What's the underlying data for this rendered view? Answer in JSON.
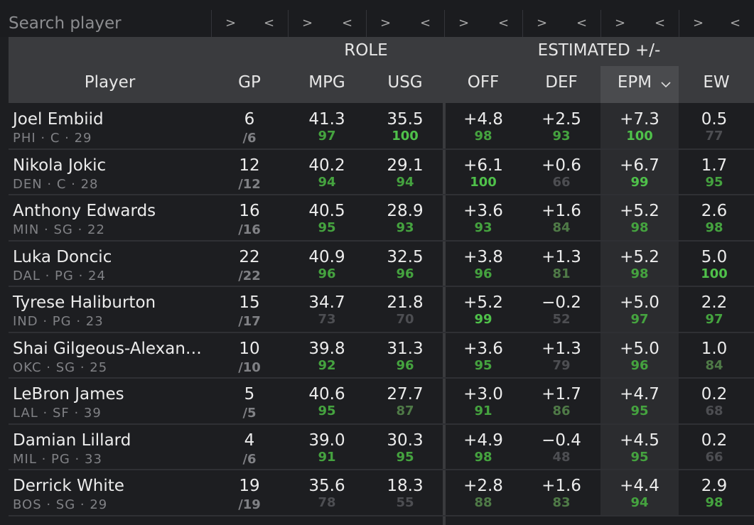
{
  "search": {
    "placeholder": "Search player",
    "buttons": [
      ">",
      "<"
    ]
  },
  "header": {
    "groups": [
      "ROLE",
      "ESTIMATED +/-"
    ],
    "columns": [
      "Player",
      "GP",
      "MPG",
      "USG",
      "OFF",
      "DEF",
      "EPM",
      "EW"
    ]
  },
  "table": {
    "rows": [
      {
        "player": "Joel Embiid",
        "info": "PHI · C · 29",
        "gp": "6",
        "games": "/6",
        "stats": [
          {
            "v": "41.3",
            "pct": 97
          },
          {
            "v": "35.5",
            "pct": 100
          },
          {
            "v": "+4.8",
            "pct": 98
          },
          {
            "v": "+2.5",
            "pct": 93
          },
          {
            "v": "+7.3",
            "pct": 100
          },
          {
            "v": "0.5",
            "pct": 77
          }
        ]
      },
      {
        "player": "Nikola Jokic",
        "info": "DEN · C · 28",
        "gp": "12",
        "games": "/12",
        "stats": [
          {
            "v": "40.2",
            "pct": 94
          },
          {
            "v": "29.1",
            "pct": 94
          },
          {
            "v": "+6.1",
            "pct": 100
          },
          {
            "v": "+0.6",
            "pct": 66
          },
          {
            "v": "+6.7",
            "pct": 99
          },
          {
            "v": "1.7",
            "pct": 95
          }
        ]
      },
      {
        "player": "Anthony Edwards",
        "info": "MIN · SG · 22",
        "gp": "16",
        "games": "/16",
        "stats": [
          {
            "v": "40.5",
            "pct": 95
          },
          {
            "v": "28.9",
            "pct": 93
          },
          {
            "v": "+3.6",
            "pct": 93
          },
          {
            "v": "+1.6",
            "pct": 84
          },
          {
            "v": "+5.2",
            "pct": 98
          },
          {
            "v": "2.6",
            "pct": 98
          }
        ]
      },
      {
        "player": "Luka Doncic",
        "info": "DAL · PG · 24",
        "gp": "22",
        "games": "/22",
        "stats": [
          {
            "v": "40.9",
            "pct": 96
          },
          {
            "v": "32.5",
            "pct": 96
          },
          {
            "v": "+3.8",
            "pct": 96
          },
          {
            "v": "+1.3",
            "pct": 81
          },
          {
            "v": "+5.2",
            "pct": 98
          },
          {
            "v": "5.0",
            "pct": 100
          }
        ]
      },
      {
        "player": "Tyrese Haliburton",
        "info": "IND · PG · 23",
        "gp": "15",
        "games": "/17",
        "stats": [
          {
            "v": "34.7",
            "pct": 73
          },
          {
            "v": "21.8",
            "pct": 70
          },
          {
            "v": "+5.2",
            "pct": 99
          },
          {
            "v": "−0.2",
            "pct": 52
          },
          {
            "v": "+5.0",
            "pct": 97
          },
          {
            "v": "2.2",
            "pct": 97
          }
        ]
      },
      {
        "player": "Shai Gilgeous-Alexan…",
        "info": "OKC · SG · 25",
        "gp": "10",
        "games": "/10",
        "stats": [
          {
            "v": "39.8",
            "pct": 92
          },
          {
            "v": "31.3",
            "pct": 96
          },
          {
            "v": "+3.6",
            "pct": 95
          },
          {
            "v": "+1.3",
            "pct": 79
          },
          {
            "v": "+5.0",
            "pct": 96
          },
          {
            "v": "1.0",
            "pct": 84
          }
        ]
      },
      {
        "player": "LeBron James",
        "info": "LAL · SF · 39",
        "gp": "5",
        "games": "/5",
        "stats": [
          {
            "v": "40.6",
            "pct": 95
          },
          {
            "v": "27.7",
            "pct": 87
          },
          {
            "v": "+3.0",
            "pct": 91
          },
          {
            "v": "+1.7",
            "pct": 86
          },
          {
            "v": "+4.7",
            "pct": 95
          },
          {
            "v": "0.2",
            "pct": 68
          }
        ]
      },
      {
        "player": "Damian Lillard",
        "info": "MIL · PG · 33",
        "gp": "4",
        "games": "/6",
        "stats": [
          {
            "v": "39.0",
            "pct": 91
          },
          {
            "v": "30.3",
            "pct": 95
          },
          {
            "v": "+4.9",
            "pct": 98
          },
          {
            "v": "−0.4",
            "pct": 48
          },
          {
            "v": "+4.5",
            "pct": 95
          },
          {
            "v": "0.2",
            "pct": 66
          }
        ]
      },
      {
        "player": "Derrick White",
        "info": "BOS · SG · 29",
        "gp": "19",
        "games": "/19",
        "stats": [
          {
            "v": "35.6",
            "pct": 78
          },
          {
            "v": "18.3",
            "pct": 55
          },
          {
            "v": "+2.8",
            "pct": 88
          },
          {
            "v": "+1.6",
            "pct": 83
          },
          {
            "v": "+4.4",
            "pct": 94
          },
          {
            "v": "2.9",
            "pct": 98
          }
        ]
      }
    ]
  }
}
